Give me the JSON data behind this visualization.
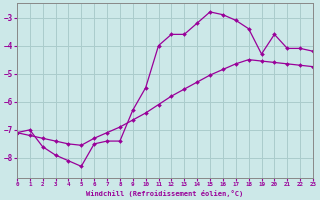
{
  "xlabel": "Windchill (Refroidissement éolien,°C)",
  "bg_color": "#cce8e8",
  "grid_color": "#aacccc",
  "line_color": "#990099",
  "x_min": 0,
  "x_max": 23,
  "y_min": -8.7,
  "y_max": -2.5,
  "yticks": [
    -8,
    -7,
    -6,
    -5,
    -4,
    -3
  ],
  "xticks": [
    0,
    1,
    2,
    3,
    4,
    5,
    6,
    7,
    8,
    9,
    10,
    11,
    12,
    13,
    14,
    15,
    16,
    17,
    18,
    19,
    20,
    21,
    22,
    23
  ],
  "line1_x": [
    0,
    1,
    2,
    3,
    4,
    5,
    6,
    7,
    8,
    9,
    10,
    11,
    12,
    13,
    14,
    15,
    16,
    17,
    18,
    19,
    20,
    21,
    22,
    23
  ],
  "line1_y": [
    -7.1,
    -7.0,
    -7.6,
    -7.9,
    -8.1,
    -8.3,
    -7.5,
    -7.4,
    -7.4,
    -6.3,
    -5.5,
    -4.0,
    -3.6,
    -3.6,
    -3.2,
    -2.8,
    -2.9,
    -3.1,
    -3.4,
    -4.3,
    -3.6,
    -4.1,
    -4.1,
    -4.2
  ],
  "line2_x": [
    0,
    1,
    2,
    3,
    4,
    5,
    6,
    7,
    8,
    9,
    10,
    11,
    12,
    13,
    14,
    15,
    16,
    17,
    18,
    19,
    20,
    21,
    22,
    23
  ],
  "line2_y": [
    -7.1,
    -7.2,
    -7.3,
    -7.4,
    -7.5,
    -7.55,
    -7.3,
    -7.1,
    -6.9,
    -6.65,
    -6.4,
    -6.1,
    -5.8,
    -5.55,
    -5.3,
    -5.05,
    -4.85,
    -4.65,
    -4.5,
    -4.55,
    -4.6,
    -4.65,
    -4.7,
    -4.75
  ]
}
